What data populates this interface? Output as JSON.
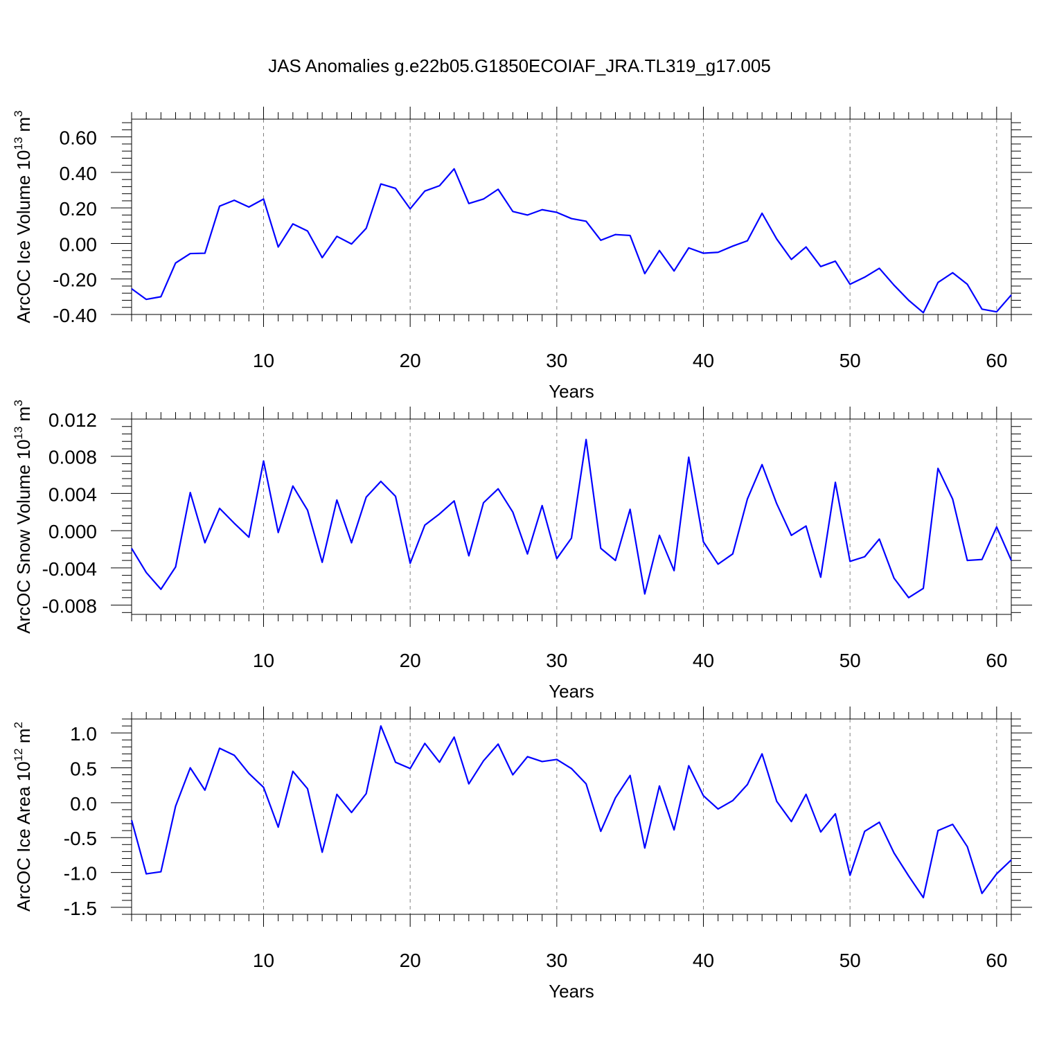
{
  "title": "JAS Anomalies g.e22b05.G1850ECOIAF_JRA.TL319_g17.005",
  "colors": {
    "line": "#0000ff",
    "grid": "#7f7f7f",
    "frame": "#000000"
  },
  "chart_data": [
    {
      "type": "line",
      "name": "ice-volume",
      "ylabel_base": "ArcOC Ice Volume 10",
      "ylabel_exp": "13",
      "ylabel_unit": " m",
      "ylabel_unit_exp": "3",
      "xlabel": "Years",
      "xlim": [
        1,
        61
      ],
      "ylim": [
        -0.4,
        0.7
      ],
      "xticks": [
        "10",
        "20",
        "30",
        "40",
        "50",
        "60"
      ],
      "yticks": [
        "0.60",
        "0.40",
        "0.20",
        "0.00",
        "-0.20",
        "-0.40"
      ],
      "grid": "vertical dashed at major x ticks",
      "x": [
        1,
        2,
        3,
        4,
        5,
        6,
        7,
        8,
        9,
        10,
        11,
        12,
        13,
        14,
        15,
        16,
        17,
        18,
        19,
        20,
        21,
        22,
        23,
        24,
        25,
        26,
        27,
        28,
        29,
        30,
        31,
        32,
        33,
        34,
        35,
        36,
        37,
        38,
        39,
        40,
        41,
        42,
        43,
        44,
        45,
        46,
        47,
        48,
        49,
        50,
        51,
        52,
        53,
        54,
        55,
        56,
        57,
        58,
        59,
        60,
        61
      ],
      "values": [
        -0.255,
        -0.315,
        -0.3,
        -0.11,
        -0.057,
        -0.055,
        0.21,
        0.243,
        0.205,
        0.25,
        -0.02,
        0.11,
        0.07,
        -0.08,
        0.04,
        -0.003,
        0.085,
        0.335,
        0.31,
        0.195,
        0.295,
        0.325,
        0.42,
        0.225,
        0.25,
        0.305,
        0.18,
        0.16,
        0.19,
        0.175,
        0.14,
        0.125,
        0.018,
        0.05,
        0.045,
        -0.17,
        -0.04,
        -0.155,
        -0.025,
        -0.055,
        -0.05,
        -0.015,
        0.015,
        0.17,
        0.025,
        -0.09,
        -0.02,
        -0.13,
        -0.1,
        -0.23,
        -0.19,
        -0.14,
        -0.235,
        -0.32,
        -0.39,
        -0.22,
        -0.165,
        -0.23,
        -0.37,
        -0.385,
        -0.29
      ]
    },
    {
      "type": "line",
      "name": "snow-volume",
      "ylabel_base": "ArcOC Snow Volume 10",
      "ylabel_exp": "13",
      "ylabel_unit": " m",
      "ylabel_unit_exp": "3",
      "xlabel": "Years",
      "xlim": [
        1,
        61
      ],
      "ylim": [
        -0.009,
        0.012
      ],
      "xticks": [
        "10",
        "20",
        "30",
        "40",
        "50",
        "60"
      ],
      "yticks": [
        "0.012",
        "0.008",
        "0.004",
        "0.000",
        "-0.004",
        "-0.008"
      ],
      "grid": "vertical dashed at major x ticks",
      "x": [
        1,
        2,
        3,
        4,
        5,
        6,
        7,
        8,
        9,
        10,
        11,
        12,
        13,
        14,
        15,
        16,
        17,
        18,
        19,
        20,
        21,
        22,
        23,
        24,
        25,
        26,
        27,
        28,
        29,
        30,
        31,
        32,
        33,
        34,
        35,
        36,
        37,
        38,
        39,
        40,
        41,
        42,
        43,
        44,
        45,
        46,
        47,
        48,
        49,
        50,
        51,
        52,
        53,
        54,
        55,
        56,
        57,
        58,
        59,
        60,
        61
      ],
      "values": [
        -0.0019,
        -0.0045,
        -0.0063,
        -0.0039,
        0.0041,
        -0.0013,
        0.0024,
        0.0008,
        -0.0007,
        0.0075,
        -0.0002,
        0.0048,
        0.0022,
        -0.0034,
        0.0033,
        -0.0013,
        0.0036,
        0.0053,
        0.0037,
        -0.0035,
        0.0006,
        0.0018,
        0.0032,
        -0.0027,
        0.003,
        0.0045,
        0.002,
        -0.0025,
        0.0027,
        -0.003,
        -0.0008,
        0.0098,
        -0.0019,
        -0.0032,
        0.0023,
        -0.0068,
        -0.0005,
        -0.0043,
        0.0079,
        -0.0012,
        -0.0036,
        -0.0025,
        0.0034,
        0.0071,
        0.0029,
        -0.0005,
        0.0005,
        -0.005,
        0.0052,
        -0.0033,
        -0.0028,
        -0.0009,
        -0.0051,
        -0.0072,
        -0.0062,
        0.0067,
        0.0034,
        -0.0032,
        -0.0031,
        0.0004,
        -0.0032
      ]
    },
    {
      "type": "line",
      "name": "ice-area",
      "ylabel_base": "ArcOC Ice Area 10",
      "ylabel_exp": "12",
      "ylabel_unit": " m",
      "ylabel_unit_exp": "2",
      "xlabel": "Years",
      "xlim": [
        1,
        61
      ],
      "ylim": [
        -1.6,
        1.2
      ],
      "xticks": [
        "10",
        "20",
        "30",
        "40",
        "50",
        "60"
      ],
      "yticks": [
        "1.0",
        "0.5",
        "0.0",
        "-0.5",
        "-1.0",
        "-1.5"
      ],
      "grid": "vertical dashed at major x ticks",
      "x": [
        1,
        2,
        3,
        4,
        5,
        6,
        7,
        8,
        9,
        10,
        11,
        12,
        13,
        14,
        15,
        16,
        17,
        18,
        19,
        20,
        21,
        22,
        23,
        24,
        25,
        26,
        27,
        28,
        29,
        30,
        31,
        32,
        33,
        34,
        35,
        36,
        37,
        38,
        39,
        40,
        41,
        42,
        43,
        44,
        45,
        46,
        47,
        48,
        49,
        50,
        51,
        52,
        53,
        54,
        55,
        56,
        57,
        58,
        59,
        60,
        61
      ],
      "values": [
        -0.25,
        -1.02,
        -0.99,
        -0.05,
        0.5,
        0.18,
        0.78,
        0.68,
        0.42,
        0.22,
        -0.35,
        0.45,
        0.2,
        -0.71,
        0.12,
        -0.14,
        0.13,
        1.1,
        0.58,
        0.49,
        0.85,
        0.58,
        0.94,
        0.27,
        0.6,
        0.84,
        0.4,
        0.66,
        0.59,
        0.62,
        0.49,
        0.27,
        -0.41,
        0.07,
        0.39,
        -0.65,
        0.24,
        -0.39,
        0.53,
        0.1,
        -0.09,
        0.03,
        0.26,
        0.7,
        0.02,
        -0.27,
        0.12,
        -0.42,
        -0.16,
        -1.04,
        -0.41,
        -0.28,
        -0.72,
        -1.05,
        -1.36,
        -0.4,
        -0.31,
        -0.63,
        -1.3,
        -1.02,
        -0.82
      ]
    }
  ]
}
